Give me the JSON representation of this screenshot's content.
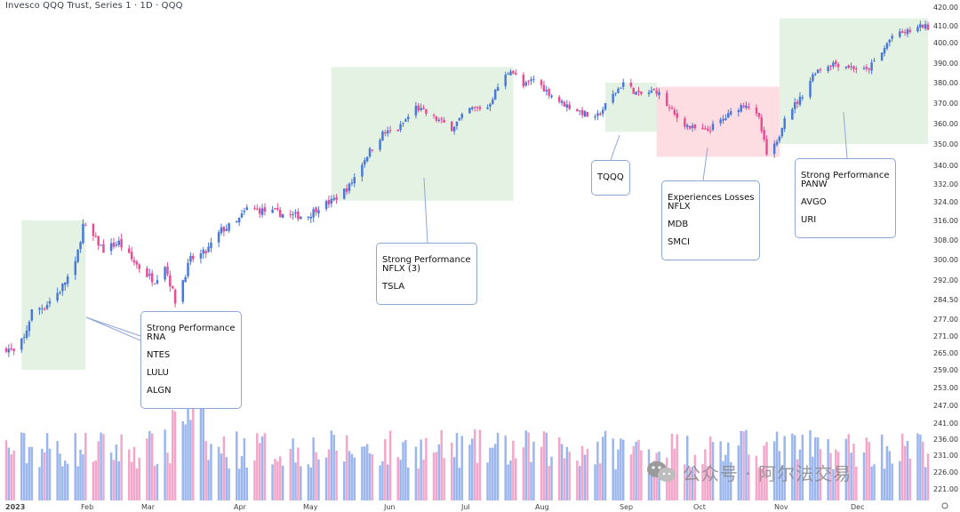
{
  "header": {
    "title": "Invesco QQQ Trust, Series 1 · 1D · QQQ"
  },
  "annotations": [
    {
      "title": "Strong Performance",
      "lines": [
        "RNA",
        "NTES",
        "LULU",
        "ALGN"
      ]
    },
    {
      "title": "Strong Performance",
      "lines": [
        "NFLX (3)",
        "TSLA"
      ]
    },
    {
      "title": "",
      "lines": [
        "TQQQ"
      ]
    },
    {
      "title": "Experiences Losses",
      "lines": [
        "NFLX",
        "MDB",
        "SMCI"
      ]
    },
    {
      "title": "Strong Performance",
      "lines": [
        "PANW",
        "AVGO",
        "URI"
      ]
    }
  ],
  "watermark": {
    "text": "公众号 · 阿尔法交易"
  },
  "colors": {
    "up": "#4a78d8",
    "down": "#e84c93",
    "highlight_green": "#e3f2e3",
    "highlight_red": "#fddde2",
    "vol_up": "#9bb6ee",
    "vol_down": "#f3a6c9"
  },
  "chart_data": {
    "type": "candlestick",
    "symbol": "QQQ",
    "interval": "1D",
    "y_tick_labels": [
      "420.00",
      "410.00",
      "400.00",
      "390.00",
      "380.00",
      "370.00",
      "360.00",
      "350.00",
      "340.00",
      "332.00",
      "324.00",
      "316.00",
      "308.00",
      "300.00",
      "292.00",
      "284.50",
      "277.00",
      "271.00",
      "265.00",
      "259.00",
      "253.00",
      "247.00",
      "241.00",
      "236.00",
      "231.00",
      "226.00",
      "221.00"
    ],
    "x_tick_labels": [
      "2023",
      "Feb",
      "Mar",
      "Apr",
      "May",
      "Jun",
      "Jul",
      "Aug",
      "Sep",
      "Oct",
      "Nov",
      "Dec"
    ],
    "close_path": [
      [
        "2023-01-03",
        267
      ],
      [
        "2023-01-06",
        265
      ],
      [
        "2023-01-10",
        270
      ],
      [
        "2023-01-13",
        280
      ],
      [
        "2023-01-18",
        282
      ],
      [
        "2023-01-24",
        288
      ],
      [
        "2023-01-30",
        298
      ],
      [
        "2023-02-02",
        314
      ],
      [
        "2023-02-07",
        308
      ],
      [
        "2023-02-10",
        304
      ],
      [
        "2023-02-16",
        307
      ],
      [
        "2023-02-21",
        300
      ],
      [
        "2023-02-27",
        294
      ],
      [
        "2023-03-02",
        292
      ],
      [
        "2023-03-06",
        298
      ],
      [
        "2023-03-10",
        284
      ],
      [
        "2023-03-16",
        300
      ],
      [
        "2023-03-22",
        303
      ],
      [
        "2023-03-28",
        312
      ],
      [
        "2023-04-03",
        315
      ],
      [
        "2023-04-07",
        321
      ],
      [
        "2023-04-14",
        320
      ],
      [
        "2023-04-20",
        319
      ],
      [
        "2023-04-25",
        318
      ],
      [
        "2023-05-01",
        318
      ],
      [
        "2023-05-05",
        322
      ],
      [
        "2023-05-10",
        324
      ],
      [
        "2023-05-17",
        331
      ],
      [
        "2023-05-24",
        345
      ],
      [
        "2023-05-30",
        355
      ],
      [
        "2023-06-05",
        357
      ],
      [
        "2023-06-12",
        368
      ],
      [
        "2023-06-20",
        362
      ],
      [
        "2023-06-26",
        358
      ],
      [
        "2023-07-03",
        367
      ],
      [
        "2023-07-10",
        368
      ],
      [
        "2023-07-14",
        378
      ],
      [
        "2023-07-19",
        387
      ],
      [
        "2023-07-24",
        378
      ],
      [
        "2023-07-28",
        382
      ],
      [
        "2023-08-02",
        376
      ],
      [
        "2023-08-08",
        370
      ],
      [
        "2023-08-15",
        366
      ],
      [
        "2023-08-21",
        362
      ],
      [
        "2023-08-28",
        374
      ],
      [
        "2023-09-01",
        380
      ],
      [
        "2023-09-07",
        374
      ],
      [
        "2023-09-14",
        376
      ],
      [
        "2023-09-21",
        364
      ],
      [
        "2023-09-27",
        358
      ],
      [
        "2023-10-03",
        356
      ],
      [
        "2023-10-10",
        362
      ],
      [
        "2023-10-16",
        368
      ],
      [
        "2023-10-19",
        370
      ],
      [
        "2023-10-24",
        362
      ],
      [
        "2023-10-27",
        345
      ],
      [
        "2023-10-31",
        350
      ],
      [
        "2023-11-03",
        364
      ],
      [
        "2023-11-09",
        372
      ],
      [
        "2023-11-15",
        386
      ],
      [
        "2023-11-22",
        390
      ],
      [
        "2023-11-29",
        388
      ],
      [
        "2023-12-05",
        386
      ],
      [
        "2023-12-11",
        395
      ],
      [
        "2023-12-15",
        404
      ],
      [
        "2023-12-20",
        406
      ],
      [
        "2023-12-27",
        410
      ],
      [
        "2023-12-29",
        409
      ]
    ]
  }
}
